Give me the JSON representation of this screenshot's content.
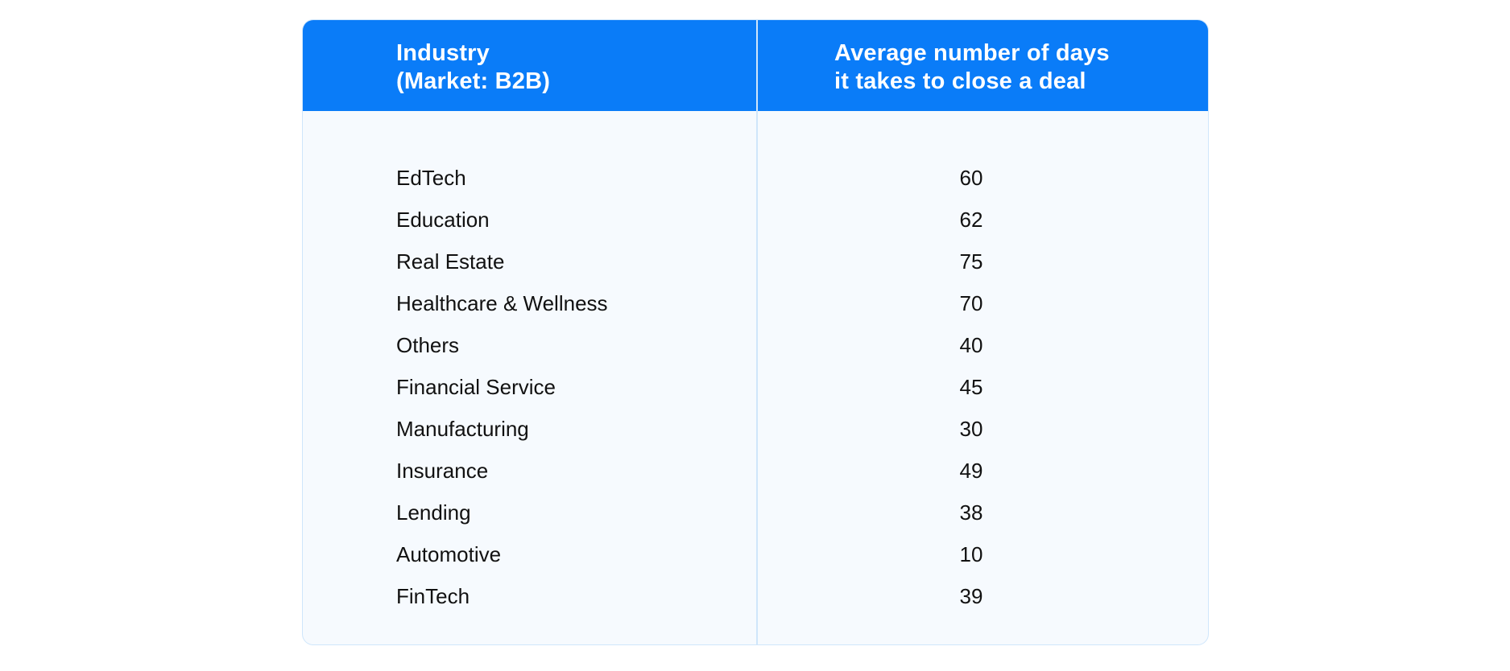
{
  "chart_data": {
    "type": "table",
    "columns": [
      [
        "Industry",
        "(Market: B2B)"
      ],
      [
        "Average number of days",
        "it takes to close a deal"
      ]
    ],
    "rows": [
      {
        "industry": "EdTech",
        "days": "60"
      },
      {
        "industry": "Education",
        "days": "62"
      },
      {
        "industry": "Real Estate",
        "days": "75"
      },
      {
        "industry": "Healthcare & Wellness",
        "days": "70"
      },
      {
        "industry": "Others",
        "days": "40"
      },
      {
        "industry": "Financial Service",
        "days": "45"
      },
      {
        "industry": "Manufacturing",
        "days": "30"
      },
      {
        "industry": "Insurance",
        "days": "49"
      },
      {
        "industry": "Lending",
        "days": "38"
      },
      {
        "industry": "Automotive",
        "days": "10"
      },
      {
        "industry": "FinTech",
        "days": "39"
      }
    ]
  },
  "colors": {
    "header_bg": "#0a7cf8",
    "body_bg": "#f6fafe",
    "border": "#cfe6fb",
    "header_text": "#ffffff",
    "body_text": "#111111"
  }
}
